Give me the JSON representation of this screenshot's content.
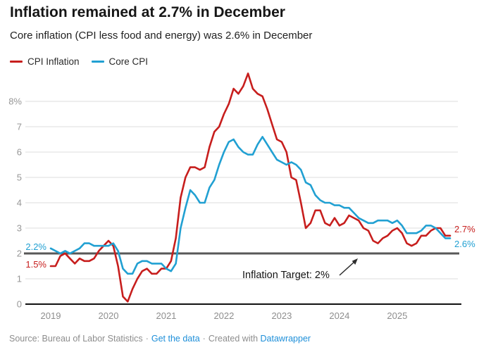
{
  "header": {
    "title": "Inflation remained at 2.7% in December",
    "subtitle": "Core inflation (CPI less food and energy) was 2.6% in December"
  },
  "footer": {
    "source_text": "Source: Bureau of Labor Statistics",
    "separator": "·",
    "get_data_link": "Get the data",
    "created_with": "Created with",
    "datawrapper_link": "Datawrapper"
  },
  "chart_data": {
    "type": "line",
    "title": "Inflation remained at 2.7% in December",
    "x_unit": "monthly",
    "x_start": "2019-01",
    "x_end": "2025-12",
    "x_ticks": [
      "2019",
      "2020",
      "2021",
      "2022",
      "2023",
      "2024",
      "2025"
    ],
    "y_ticks": [
      {
        "value": 0,
        "label": "0"
      },
      {
        "value": 1,
        "label": "1"
      },
      {
        "value": 2,
        "label": "2"
      },
      {
        "value": 3,
        "label": "3"
      },
      {
        "value": 4,
        "label": "4"
      },
      {
        "value": 5,
        "label": "5"
      },
      {
        "value": 6,
        "label": "6"
      },
      {
        "value": 7,
        "label": "7"
      },
      {
        "value": 8,
        "label": "8%"
      }
    ],
    "ylim": [
      0,
      9.3
    ],
    "grid": true,
    "legend_position": "top-left",
    "target_line": {
      "value": 2,
      "label": "Inflation Target: 2%",
      "color": "#585858"
    },
    "colors": {
      "grid": "#dedede",
      "axis": "#111111",
      "tick_text": "#979797"
    },
    "series": [
      {
        "name": "CPI Inflation",
        "color": "#c71e1d",
        "start_label": "1.5%",
        "end_label": "2.7%",
        "values": [
          1.5,
          1.5,
          1.9,
          2.0,
          1.8,
          1.6,
          1.8,
          1.7,
          1.7,
          1.8,
          2.1,
          2.3,
          2.5,
          2.3,
          1.5,
          0.3,
          0.1,
          0.6,
          1.0,
          1.3,
          1.4,
          1.2,
          1.2,
          1.4,
          1.4,
          1.7,
          2.6,
          4.2,
          5.0,
          5.4,
          5.4,
          5.3,
          5.4,
          6.2,
          6.8,
          7.0,
          7.5,
          7.9,
          8.5,
          8.3,
          8.6,
          9.1,
          8.5,
          8.3,
          8.2,
          7.7,
          7.1,
          6.5,
          6.4,
          6.0,
          5.0,
          4.9,
          4.0,
          3.0,
          3.2,
          3.7,
          3.7,
          3.2,
          3.1,
          3.4,
          3.1,
          3.2,
          3.5,
          3.4,
          3.3,
          3.0,
          2.9,
          2.5,
          2.4,
          2.6,
          2.7,
          2.9,
          3.0,
          2.8,
          2.4,
          2.3,
          2.4,
          2.7,
          2.7,
          2.9,
          3.0,
          3.0,
          2.7,
          2.7
        ]
      },
      {
        "name": "Core CPI",
        "color": "#21a0d2",
        "start_label": "2.2%",
        "end_label": "2.6%",
        "values": [
          2.2,
          2.1,
          2.0,
          2.1,
          2.0,
          2.1,
          2.2,
          2.4,
          2.4,
          2.3,
          2.3,
          2.3,
          2.3,
          2.4,
          2.1,
          1.4,
          1.2,
          1.2,
          1.6,
          1.7,
          1.7,
          1.6,
          1.6,
          1.6,
          1.4,
          1.3,
          1.6,
          3.0,
          3.8,
          4.5,
          4.3,
          4.0,
          4.0,
          4.6,
          4.9,
          5.5,
          6.0,
          6.4,
          6.5,
          6.2,
          6.0,
          5.9,
          5.9,
          6.3,
          6.6,
          6.3,
          6.0,
          5.7,
          5.6,
          5.5,
          5.6,
          5.5,
          5.3,
          4.8,
          4.7,
          4.3,
          4.1,
          4.0,
          4.0,
          3.9,
          3.9,
          3.8,
          3.8,
          3.6,
          3.4,
          3.3,
          3.2,
          3.2,
          3.3,
          3.3,
          3.3,
          3.2,
          3.3,
          3.1,
          2.8,
          2.8,
          2.8,
          2.9,
          3.1,
          3.1,
          3.0,
          2.8,
          2.6,
          2.6
        ]
      }
    ]
  }
}
